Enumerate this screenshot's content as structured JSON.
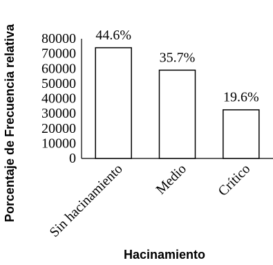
{
  "chart_data": {
    "type": "bar",
    "categories": [
      "Sin hacinamiento",
      "Medio",
      "Crítico"
    ],
    "values": [
      74000,
      59000,
      32500
    ],
    "data_labels": [
      "44.6%",
      "35.7%",
      "19.6%"
    ],
    "xlabel": "Hacinamiento",
    "ylabel": "Porcentaje de Frecuencia relativa",
    "ylim": [
      0,
      80000
    ],
    "yticks": [
      0,
      10000,
      20000,
      30000,
      40000,
      50000,
      60000,
      70000,
      80000
    ],
    "grid": false,
    "legend": "none",
    "bar_fill": "#ffffff",
    "bar_stroke": "#000000"
  }
}
